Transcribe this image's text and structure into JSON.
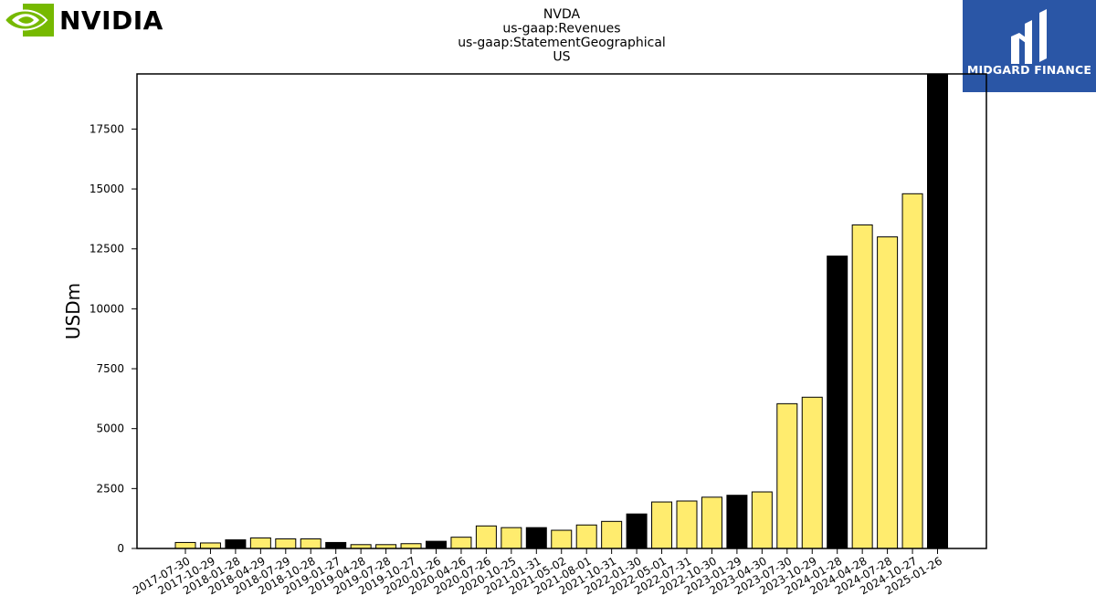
{
  "logos": {
    "left_text": "NVIDIA",
    "right_text": "MIDGARD FINANCE"
  },
  "colors": {
    "yellow": "#ffec6e",
    "black": "#000000",
    "logo_green": "#76b900",
    "logo_blue": "#2a56a6"
  },
  "chart_data": {
    "type": "bar",
    "title": [
      "NVDA",
      "us-gaap:Revenues",
      "us-gaap:StatementGeographical",
      "US"
    ],
    "xlabel": "",
    "ylabel": "USDm",
    "ylim": [
      0,
      19800
    ],
    "yticks": [
      0,
      2500,
      5000,
      7500,
      10000,
      12500,
      15000,
      17500
    ],
    "grid": false,
    "legend": "none",
    "categories": [
      "2017-07-30",
      "2017-10-29",
      "2018-01-28",
      "2018-04-29",
      "2018-07-29",
      "2018-10-28",
      "2019-01-27",
      "2019-04-28",
      "2019-07-28",
      "2019-10-27",
      "2020-01-26",
      "2020-04-26",
      "2020-07-26",
      "2020-10-25",
      "2021-01-31",
      "2021-05-02",
      "2021-08-01",
      "2021-10-31",
      "2022-01-30",
      "2022-05-01",
      "2022-07-31",
      "2022-10-30",
      "2023-01-29",
      "2023-04-30",
      "2023-07-30",
      "2023-10-29",
      "2024-01-28",
      "2024-04-28",
      "2024-07-28",
      "2024-10-27",
      "2025-01-26"
    ],
    "values": [
      250,
      230,
      360,
      440,
      400,
      400,
      250,
      160,
      160,
      200,
      300,
      470,
      940,
      870,
      870,
      760,
      980,
      1130,
      1440,
      1940,
      1980,
      2140,
      2220,
      2360,
      6040,
      6310,
      12200,
      13500,
      13000,
      14800,
      19900
    ],
    "bar_colors": [
      "yellow",
      "yellow",
      "black",
      "yellow",
      "yellow",
      "yellow",
      "black",
      "yellow",
      "yellow",
      "yellow",
      "black",
      "yellow",
      "yellow",
      "yellow",
      "black",
      "yellow",
      "yellow",
      "yellow",
      "black",
      "yellow",
      "yellow",
      "yellow",
      "black",
      "yellow",
      "yellow",
      "yellow",
      "black",
      "yellow",
      "yellow",
      "yellow",
      "black"
    ]
  }
}
